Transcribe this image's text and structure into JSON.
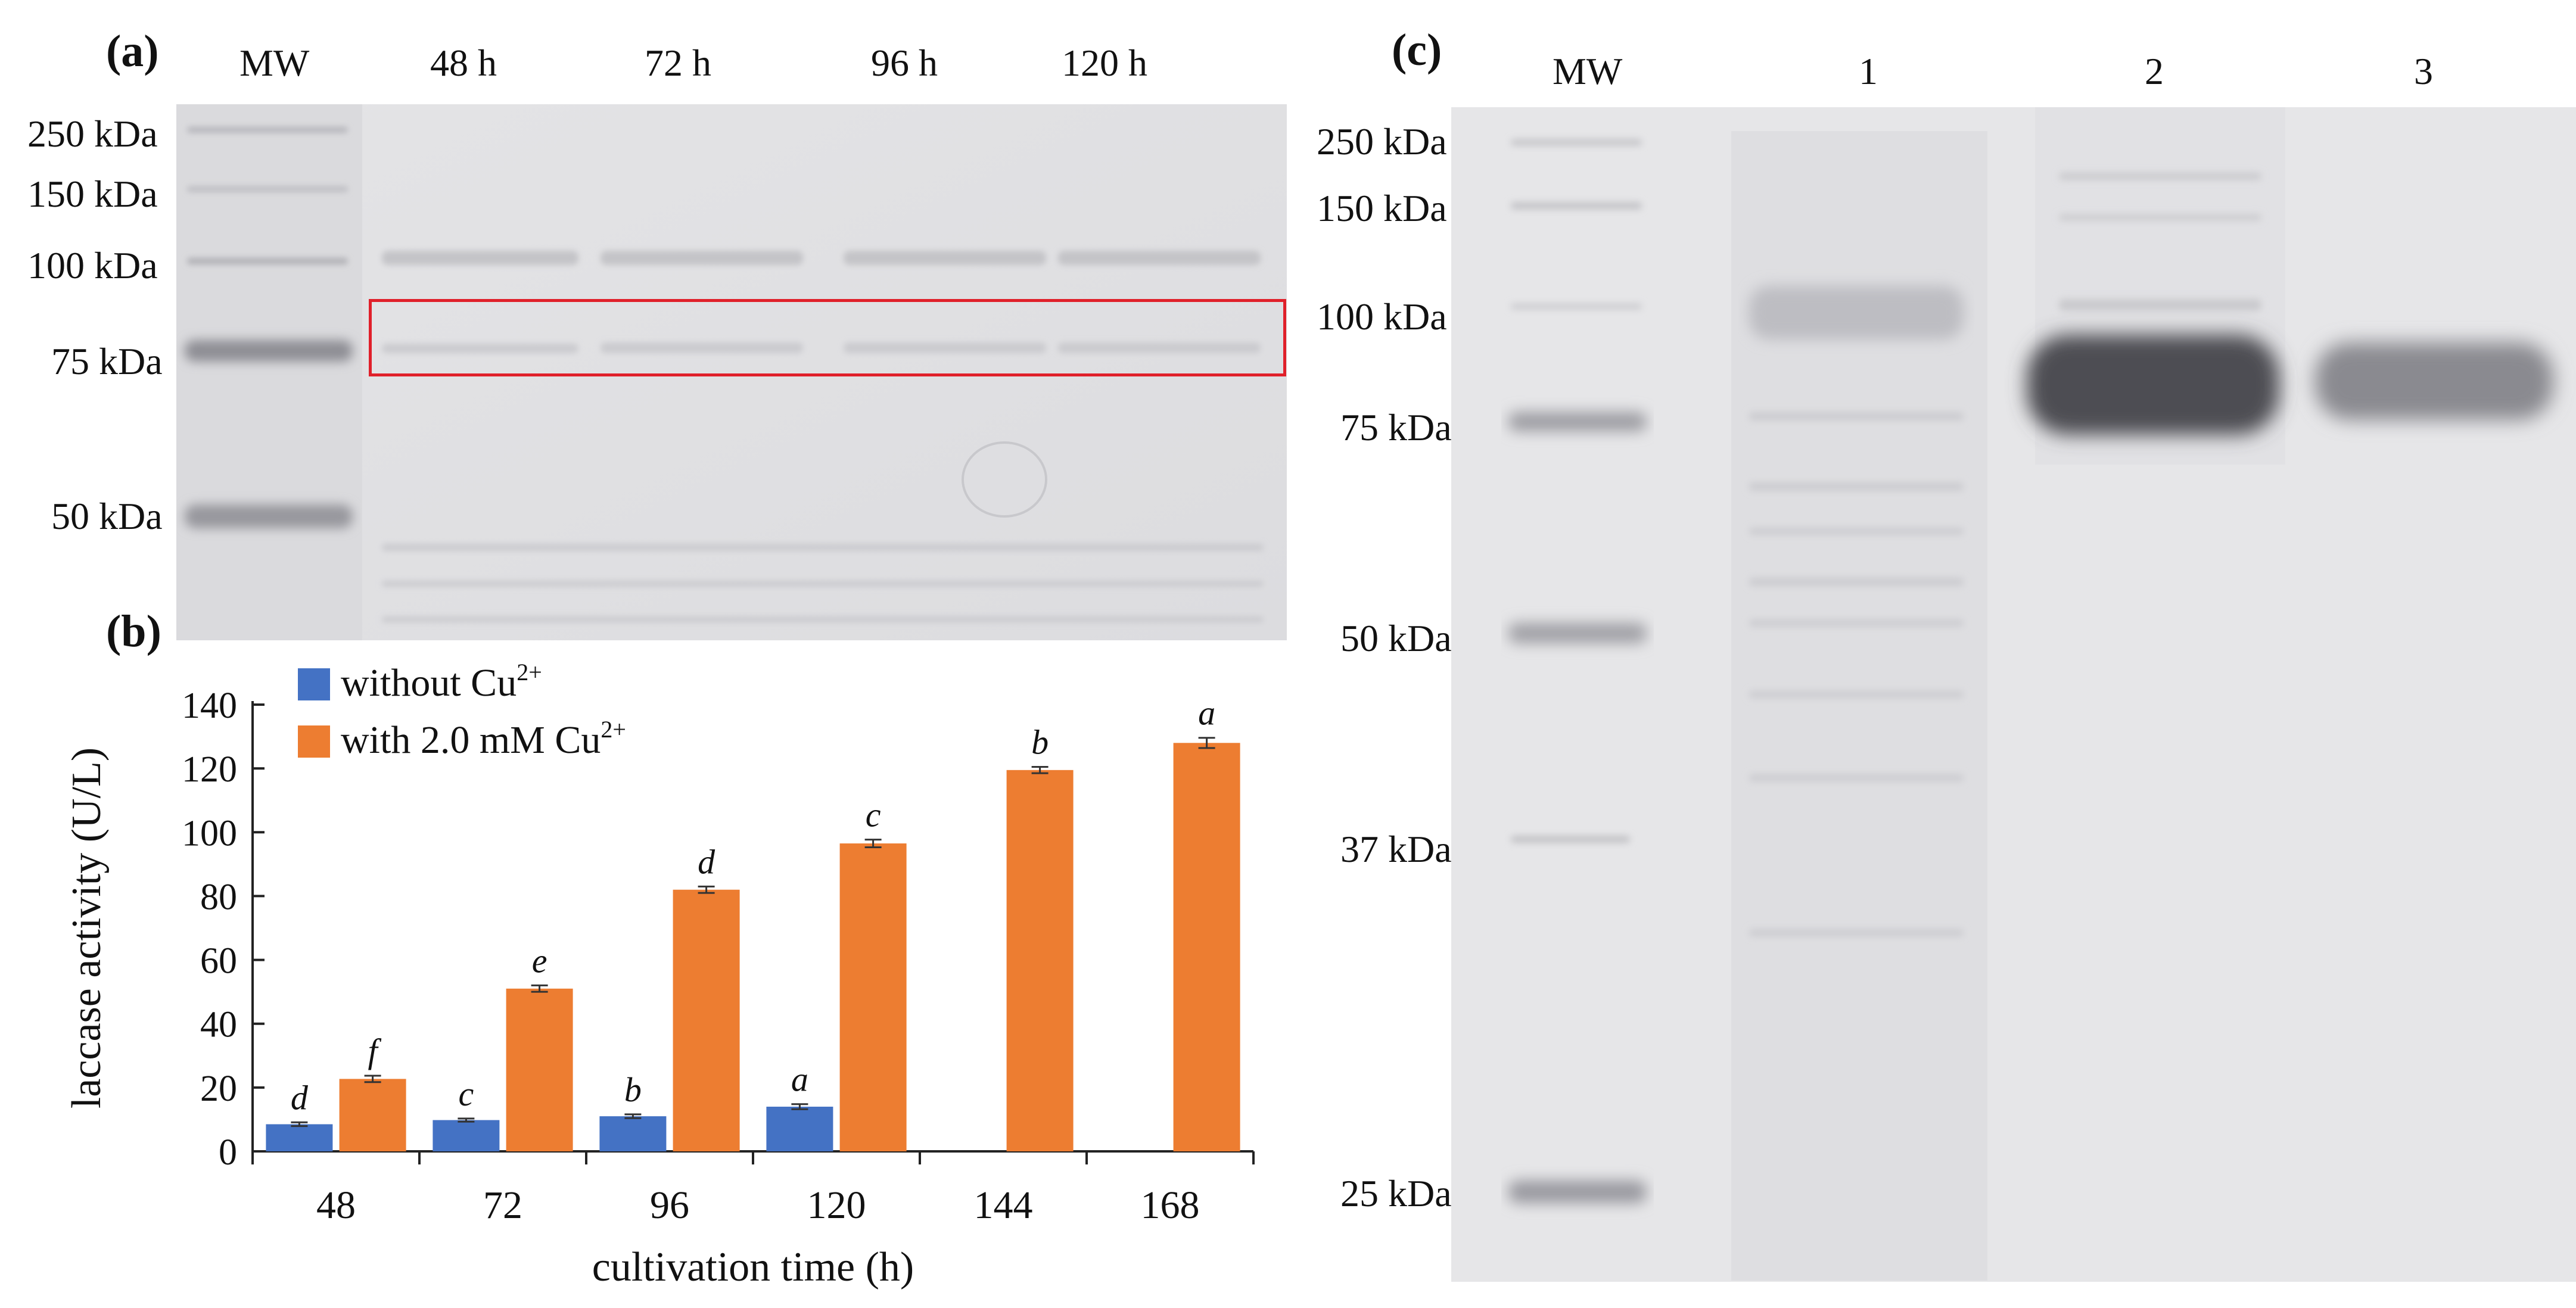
{
  "panel_a": {
    "label": "(a)",
    "lanes": [
      "MW",
      "48 h",
      "72 h",
      "96 h",
      "120 h"
    ],
    "markers": [
      "250 kDa",
      "150 kDa",
      "100 kDa",
      "75 kDa",
      "50 kDa"
    ],
    "highlight_color": "#e0202a"
  },
  "panel_c": {
    "label": "(c)",
    "lanes": [
      "MW",
      "1",
      "2",
      "3"
    ],
    "markers": [
      "250  kDa",
      "150  kDa",
      "100  kDa",
      "75  kDa",
      "50  kDa",
      "37  kDa",
      "25  kDa"
    ]
  },
  "chart_data": {
    "panel_label": "(b)",
    "type": "bar",
    "categories": [
      "48",
      "72",
      "96",
      "120",
      "144",
      "168"
    ],
    "xlabel": "cultivation time (h)",
    "ylabel": "laccase activity (U/L)",
    "ylim": [
      0,
      140
    ],
    "yticks": [
      "0",
      "20",
      "40",
      "60",
      "80",
      "100",
      "120",
      "140"
    ],
    "legend_position": "top-left",
    "series": [
      {
        "name_prefix": "without Cu",
        "name_sup": "2+",
        "color": "#4472c4",
        "values": [
          8.5,
          9.8,
          11.0,
          14.0,
          null,
          null
        ],
        "errors": [
          0.6,
          0.5,
          0.6,
          0.8,
          null,
          null
        ],
        "letters": [
          "d",
          "c",
          "b",
          "a",
          "",
          ""
        ]
      },
      {
        "name_prefix": "with 2.0 mM Cu",
        "name_sup": "2+",
        "color": "#ed7d31",
        "values": [
          22.7,
          51.0,
          82.0,
          96.5,
          119.5,
          128.0
        ],
        "errors": [
          1.0,
          1.0,
          1.0,
          1.2,
          1.0,
          1.6
        ],
        "letters": [
          "f",
          "e",
          "d",
          "c",
          "b",
          "a"
        ]
      }
    ]
  }
}
